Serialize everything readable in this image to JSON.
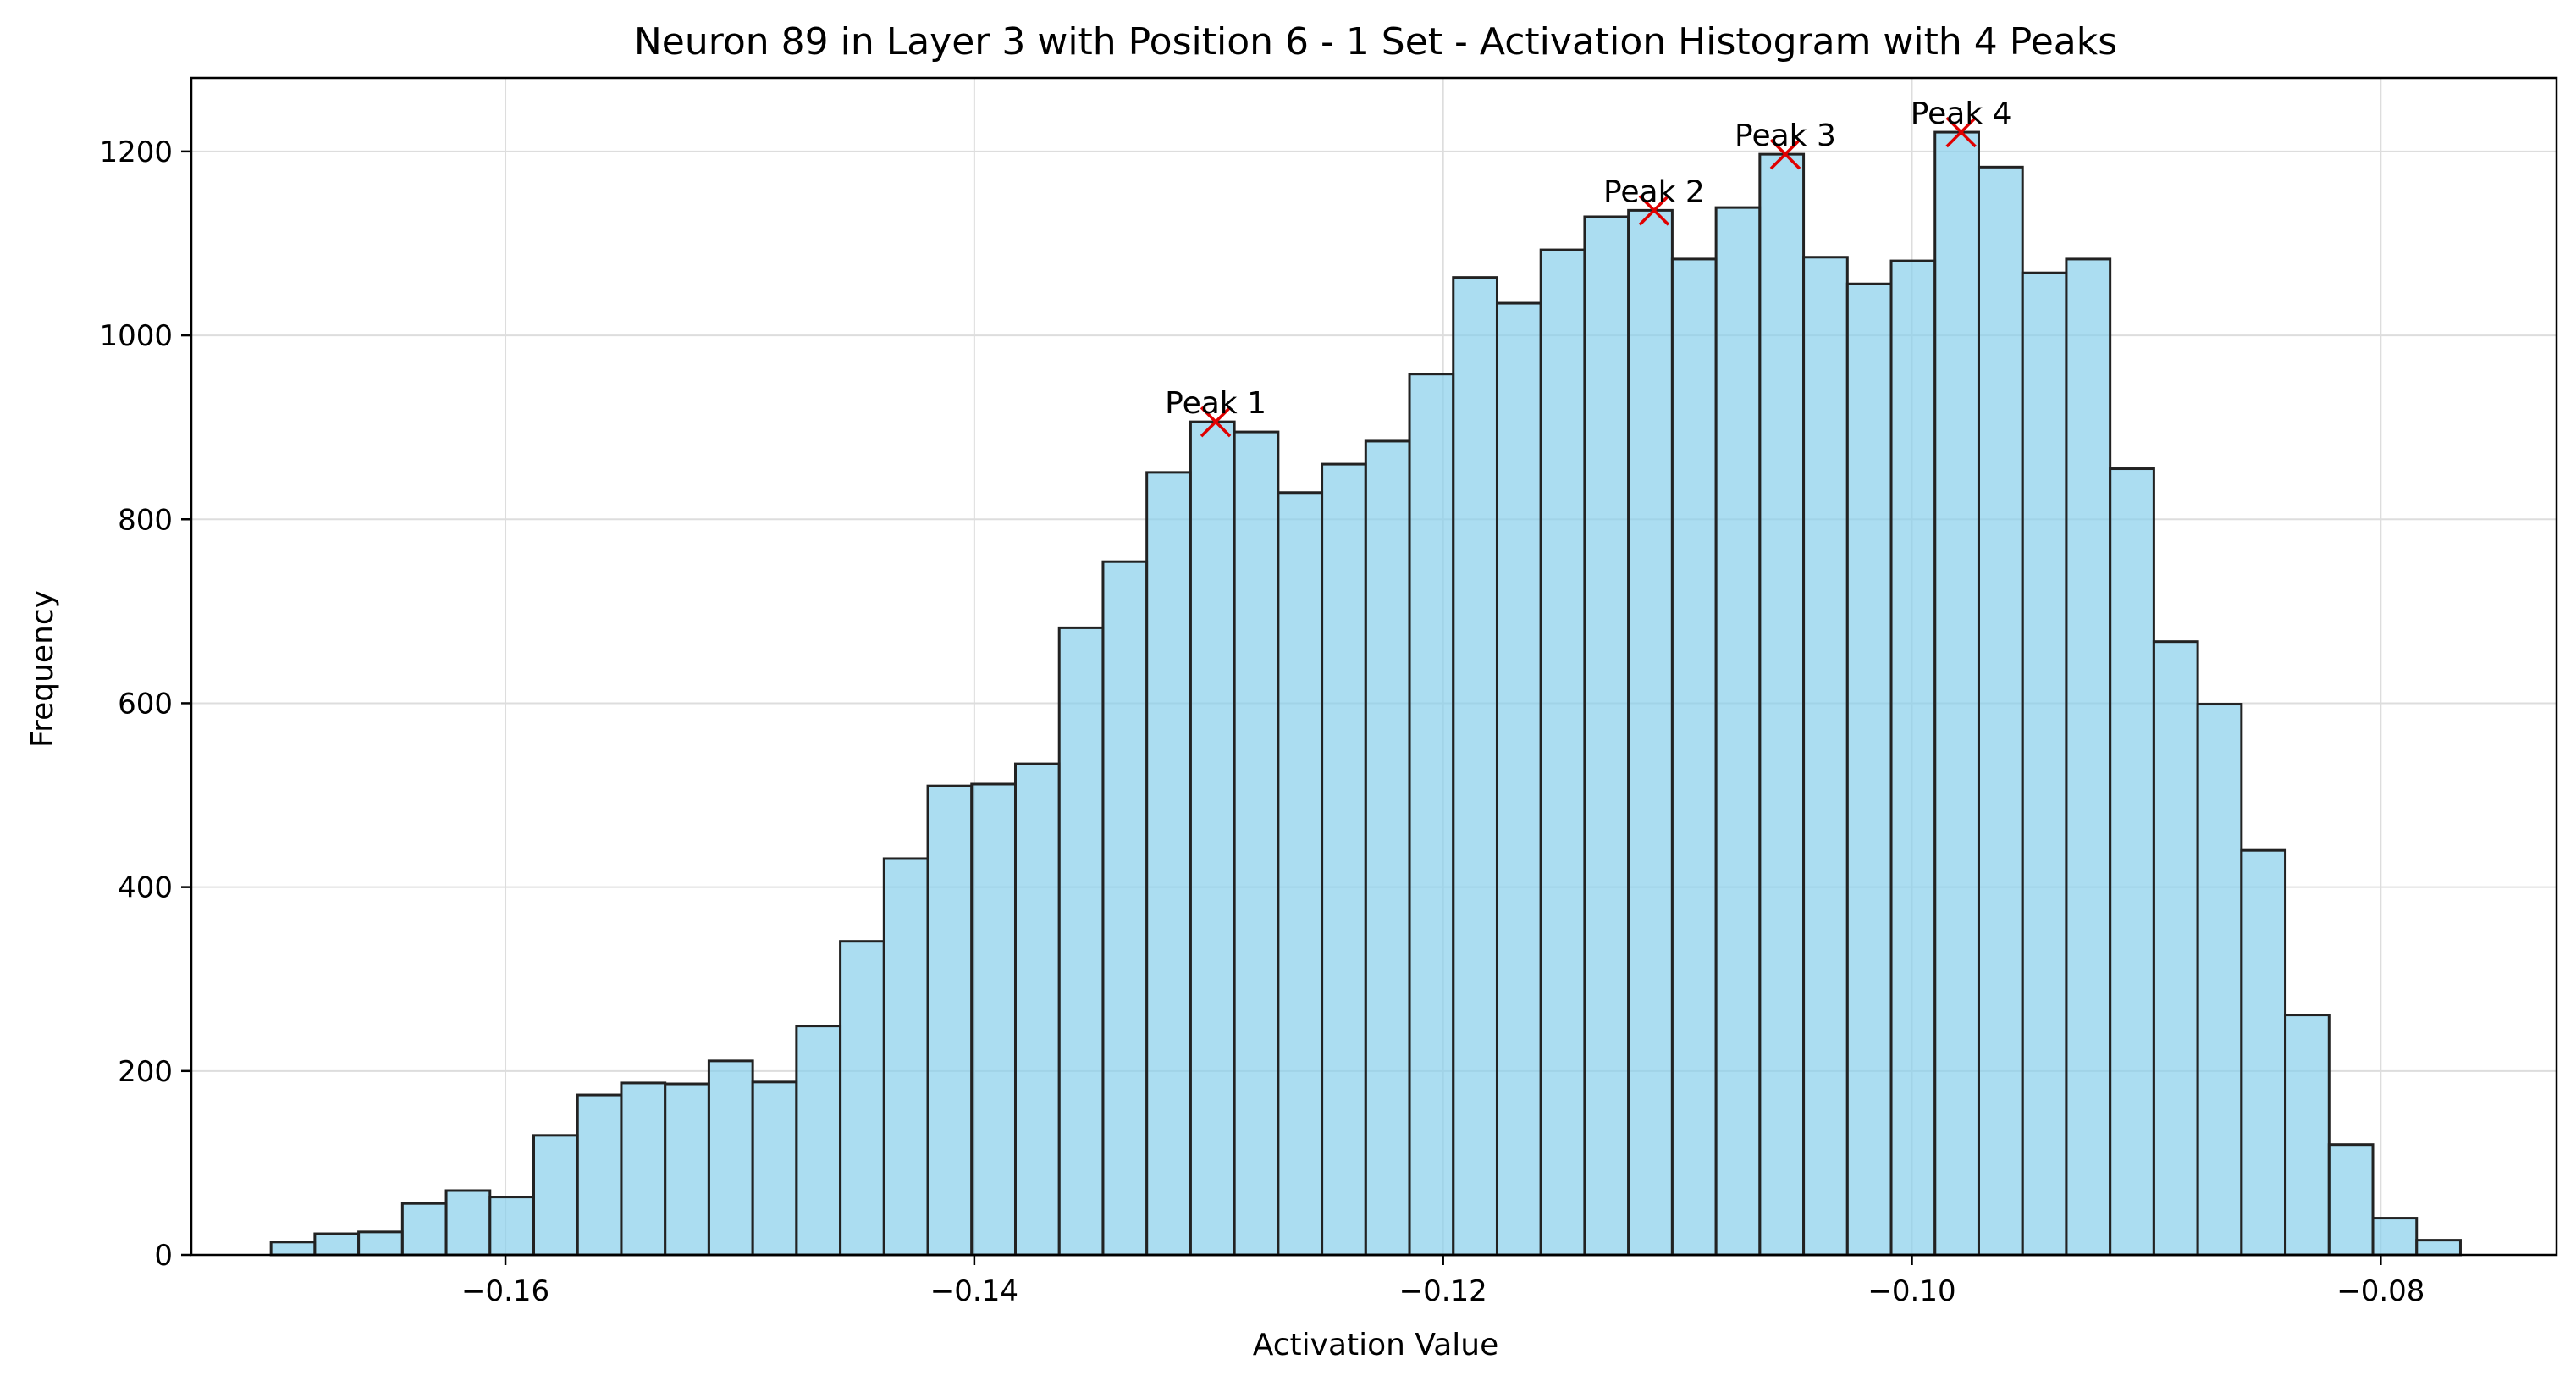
{
  "chart_data": {
    "type": "bar",
    "subtype": "histogram",
    "title": "Neuron 89 in Layer 3 with Position 6 - 1 Set - Activation Histogram with 4 Peaks",
    "xlabel": "Activation Value",
    "ylabel": "Frequency",
    "xlim": [
      -0.1734,
      -0.0725
    ],
    "ylim": [
      0,
      1280
    ],
    "grid": true,
    "bin_start": -0.17,
    "bin_width": 0.001868,
    "values": [
      14,
      23,
      25,
      56,
      70,
      63,
      130,
      174,
      187,
      186,
      211,
      188,
      249,
      341,
      431,
      510,
      512,
      534,
      682,
      754,
      851,
      906,
      895,
      829,
      860,
      885,
      958,
      1063,
      1035,
      1093,
      1129,
      1136,
      1083,
      1139,
      1197,
      1085,
      1056,
      1081,
      1221,
      1183,
      1068,
      1083,
      855,
      667,
      599,
      440,
      261,
      120,
      40,
      16
    ],
    "xticks": [
      {
        "value": -0.16,
        "label": "−0.16"
      },
      {
        "value": -0.14,
        "label": "−0.14"
      },
      {
        "value": -0.12,
        "label": "−0.12"
      },
      {
        "value": -0.1,
        "label": "−0.10"
      },
      {
        "value": -0.08,
        "label": "−0.08"
      }
    ],
    "yticks": [
      {
        "value": 0,
        "label": "0"
      },
      {
        "value": 200,
        "label": "200"
      },
      {
        "value": 400,
        "label": "400"
      },
      {
        "value": 600,
        "label": "600"
      },
      {
        "value": 800,
        "label": "800"
      },
      {
        "value": 1000,
        "label": "1000"
      },
      {
        "value": 1200,
        "label": "1200"
      }
    ],
    "peaks": [
      {
        "label": "Peak 1",
        "x": -0.1297,
        "y": 906
      },
      {
        "label": "Peak 2",
        "x": -0.111,
        "y": 1136
      },
      {
        "label": "Peak 3",
        "x": -0.1054,
        "y": 1197
      },
      {
        "label": "Peak 4",
        "x": -0.0979,
        "y": 1221
      }
    ],
    "colors": {
      "bar_fill": "#87CEEB",
      "bar_edge": "#222222",
      "peak_marker": "#e00000",
      "grid": "#dddddd"
    }
  }
}
